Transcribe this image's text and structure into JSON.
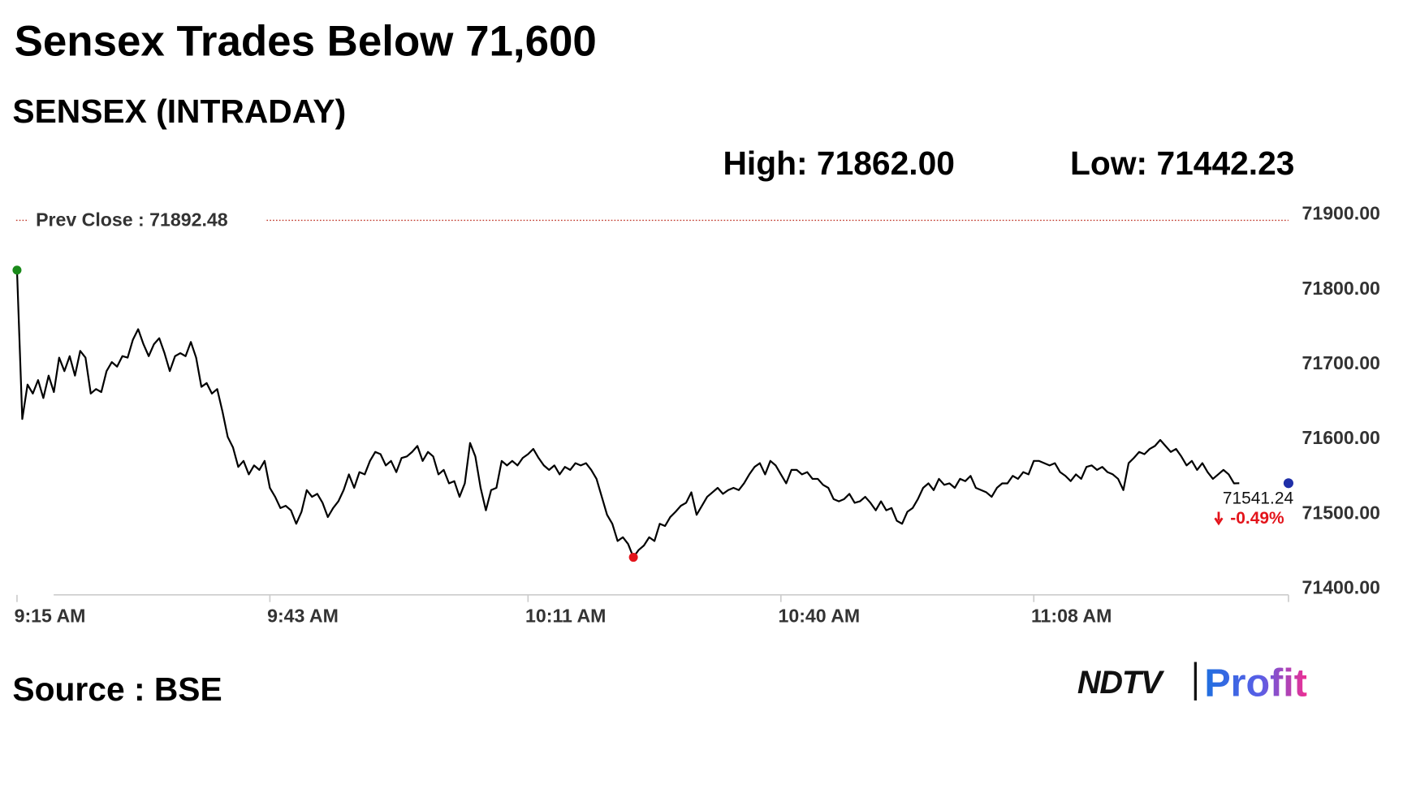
{
  "title": "Sensex Trades Below 71,600",
  "source": "Source : BSE",
  "logo": {
    "brand": "NDTV",
    "product": "Profit"
  },
  "chart_data": {
    "type": "line",
    "title": "SENSEX (INTRADAY)",
    "high_text": "High: 71862.00",
    "low_text": "Low: 71442.23",
    "prev_close": {
      "value": 71892.48,
      "label": "Prev Close : 71892.48",
      "color": "#c0392b"
    },
    "change_label": "-0.49%",
    "change_color": "#e3141b",
    "color": "#000000",
    "marker_colors": {
      "start": "#1a8a1a",
      "low": "#e3141b",
      "last": "#1f2fa8"
    },
    "categories": [
      "9:15 AM",
      null,
      null,
      null,
      null,
      null,
      null,
      null,
      null,
      null,
      null,
      null,
      null,
      null,
      null,
      null,
      null,
      null,
      null,
      null,
      null,
      null,
      null,
      null,
      null,
      null,
      null,
      null,
      null,
      null,
      null,
      null,
      null,
      null,
      null,
      null,
      null,
      null,
      null,
      null,
      null,
      null,
      null,
      null,
      null,
      null,
      null,
      null,
      "9:43 AM",
      null,
      null,
      null,
      null,
      null,
      null,
      null,
      null,
      null,
      null,
      null,
      null,
      null,
      null,
      null,
      null,
      null,
      null,
      null,
      null,
      null,
      null,
      null,
      null,
      null,
      null,
      null,
      null,
      null,
      null,
      null,
      null,
      null,
      null,
      null,
      null,
      null,
      null,
      null,
      null,
      null,
      null,
      null,
      null,
      null,
      null,
      null,
      null,
      "10:11 AM",
      null,
      null,
      null,
      null,
      null,
      null,
      null,
      null,
      null,
      null,
      null,
      null,
      null,
      null,
      null,
      null,
      null,
      null,
      null,
      null,
      null,
      null,
      null,
      null,
      null,
      null,
      null,
      null,
      null,
      null,
      null,
      null,
      null,
      null,
      null,
      null,
      null,
      null,
      null,
      null,
      null,
      null,
      null,
      null,
      null,
      null,
      null,
      "10:40 AM",
      null,
      null,
      null,
      null,
      null,
      null,
      null,
      null,
      null,
      null,
      null,
      null,
      null,
      null,
      null,
      null,
      null,
      null,
      null,
      null,
      null,
      null,
      null,
      null,
      null,
      null,
      null,
      null,
      null,
      null,
      null,
      null,
      null,
      null,
      null,
      null,
      null,
      null,
      null,
      null,
      null,
      null,
      null,
      null,
      null,
      null,
      null,
      "11:08 AM",
      null,
      null,
      null,
      null,
      null,
      null,
      null,
      null,
      null,
      null,
      null,
      null,
      null,
      null,
      null,
      null,
      null,
      null,
      null,
      null,
      null,
      null,
      null,
      null,
      null,
      null,
      null,
      null,
      null,
      null,
      null,
      null,
      null,
      null,
      null,
      null,
      null,
      null,
      null
    ],
    "values": [
      71826,
      71627,
      71673,
      71661,
      71679,
      71655,
      71685,
      71663,
      71709,
      71691,
      71711,
      71685,
      71718,
      71709,
      71661,
      71667,
      71663,
      71691,
      71703,
      71697,
      71711,
      71709,
      71733,
      71747,
      71727,
      71711,
      71727,
      71735,
      71715,
      71691,
      71711,
      71715,
      71711,
      71730,
      71709,
      71670,
      71675,
      71661,
      71667,
      71637,
      71603,
      71589,
      71563,
      71571,
      71553,
      71565,
      71559,
      71571,
      71535,
      71523,
      71508,
      71511,
      71505,
      71487,
      71503,
      71532,
      71523,
      71527,
      71515,
      71496,
      71508,
      71517,
      71532,
      71553,
      71535,
      71556,
      71553,
      71571,
      71583,
      71580,
      71565,
      71571,
      71556,
      71575,
      71577,
      71583,
      71591,
      71571,
      71583,
      71577,
      71553,
      71559,
      71541,
      71544,
      71523,
      71541,
      71595,
      71577,
      71535,
      71505,
      71532,
      71535,
      71571,
      71565,
      71571,
      71565,
      71575,
      71580,
      71587,
      71575,
      71565,
      71559,
      71565,
      71553,
      71563,
      71559,
      71568,
      71565,
      71568,
      71559,
      71547,
      71523,
      71499,
      71487,
      71464,
      71469,
      71460,
      71442.23,
      71452,
      71458,
      71469,
      71464,
      71487,
      71484,
      71496,
      71503,
      71511,
      71515,
      71529,
      71499,
      71511,
      71523,
      71529,
      71535,
      71527,
      71532,
      71535,
      71532,
      71541,
      71553,
      71563,
      71568,
      71553,
      71571,
      71565,
      71553,
      71541,
      71559,
      71559,
      71553,
      71556,
      71547,
      71547,
      71539,
      71535,
      71520,
      71517,
      71520,
      71527,
      71515,
      71517,
      71523,
      71515,
      71505,
      71517,
      71505,
      71508,
      71491,
      71487,
      71503,
      71508,
      71520,
      71535,
      71541,
      71532,
      71547,
      71539,
      71541,
      71535,
      71547,
      71544,
      71551,
      71535,
      71532,
      71529,
      71523,
      71535,
      71541,
      71541,
      71551,
      71547,
      71556,
      71553,
      71571,
      71571,
      71568,
      71565,
      71568,
      71556,
      71551,
      71544,
      71553,
      71547,
      71563,
      71565,
      71559,
      71563,
      71556,
      71553,
      71547,
      71532,
      71568,
      71575,
      71583,
      71580,
      71587,
      71591,
      71599,
      71591,
      71583,
      71587,
      71577,
      71565,
      71571,
      71559,
      71568,
      71556,
      71547,
      71553,
      71559,
      71553,
      71541,
      71541.24
    ],
    "ylim": [
      71392,
      71900
    ],
    "yticks": [
      {
        "value": 71900,
        "label": "71900.00"
      },
      {
        "value": 71800,
        "label": "71800.00"
      },
      {
        "value": 71700,
        "label": "71700.00"
      },
      {
        "value": 71600,
        "label": "71600.00"
      },
      {
        "value": 71500,
        "label": "71500.00"
      },
      {
        "value": 71400,
        "label": "71400.00"
      }
    ],
    "grid": false
  }
}
